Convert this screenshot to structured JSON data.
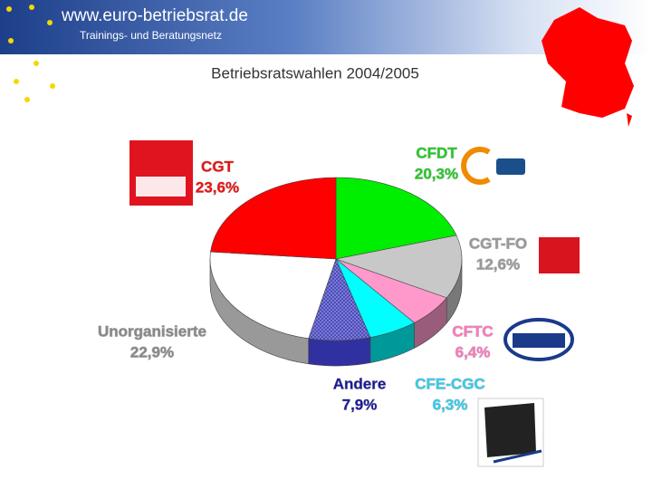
{
  "header": {
    "site": "www.euro-betriebsrat.de",
    "subtitle": "Trainings- und Beratungsnetz"
  },
  "chart_data": {
    "type": "pie",
    "title": "Betriebsratswahlen 2004/2005",
    "categories": [
      "CFDT",
      "CGT-FO",
      "CFTC",
      "CFE-CGC",
      "Andere",
      "Unorganisierte",
      "CGT"
    ],
    "values": [
      20.3,
      12.6,
      6.4,
      6.3,
      7.9,
      22.9,
      23.6
    ],
    "value_labels": [
      "20,3%",
      "12,6%",
      "6,4%",
      "6,3%",
      "7,9%",
      "22,9%",
      "23,6%"
    ],
    "colors": [
      "#00ee00",
      "#c8c8c8",
      "#ff99cc",
      "#00ffff",
      "#7070d0",
      "#ffffff",
      "#ff0000"
    ],
    "label_colors": [
      "#22cc22",
      "#999999",
      "#ff77bb",
      "#33ccee",
      "#1a1a99",
      "#888888",
      "#ee1111"
    ]
  }
}
